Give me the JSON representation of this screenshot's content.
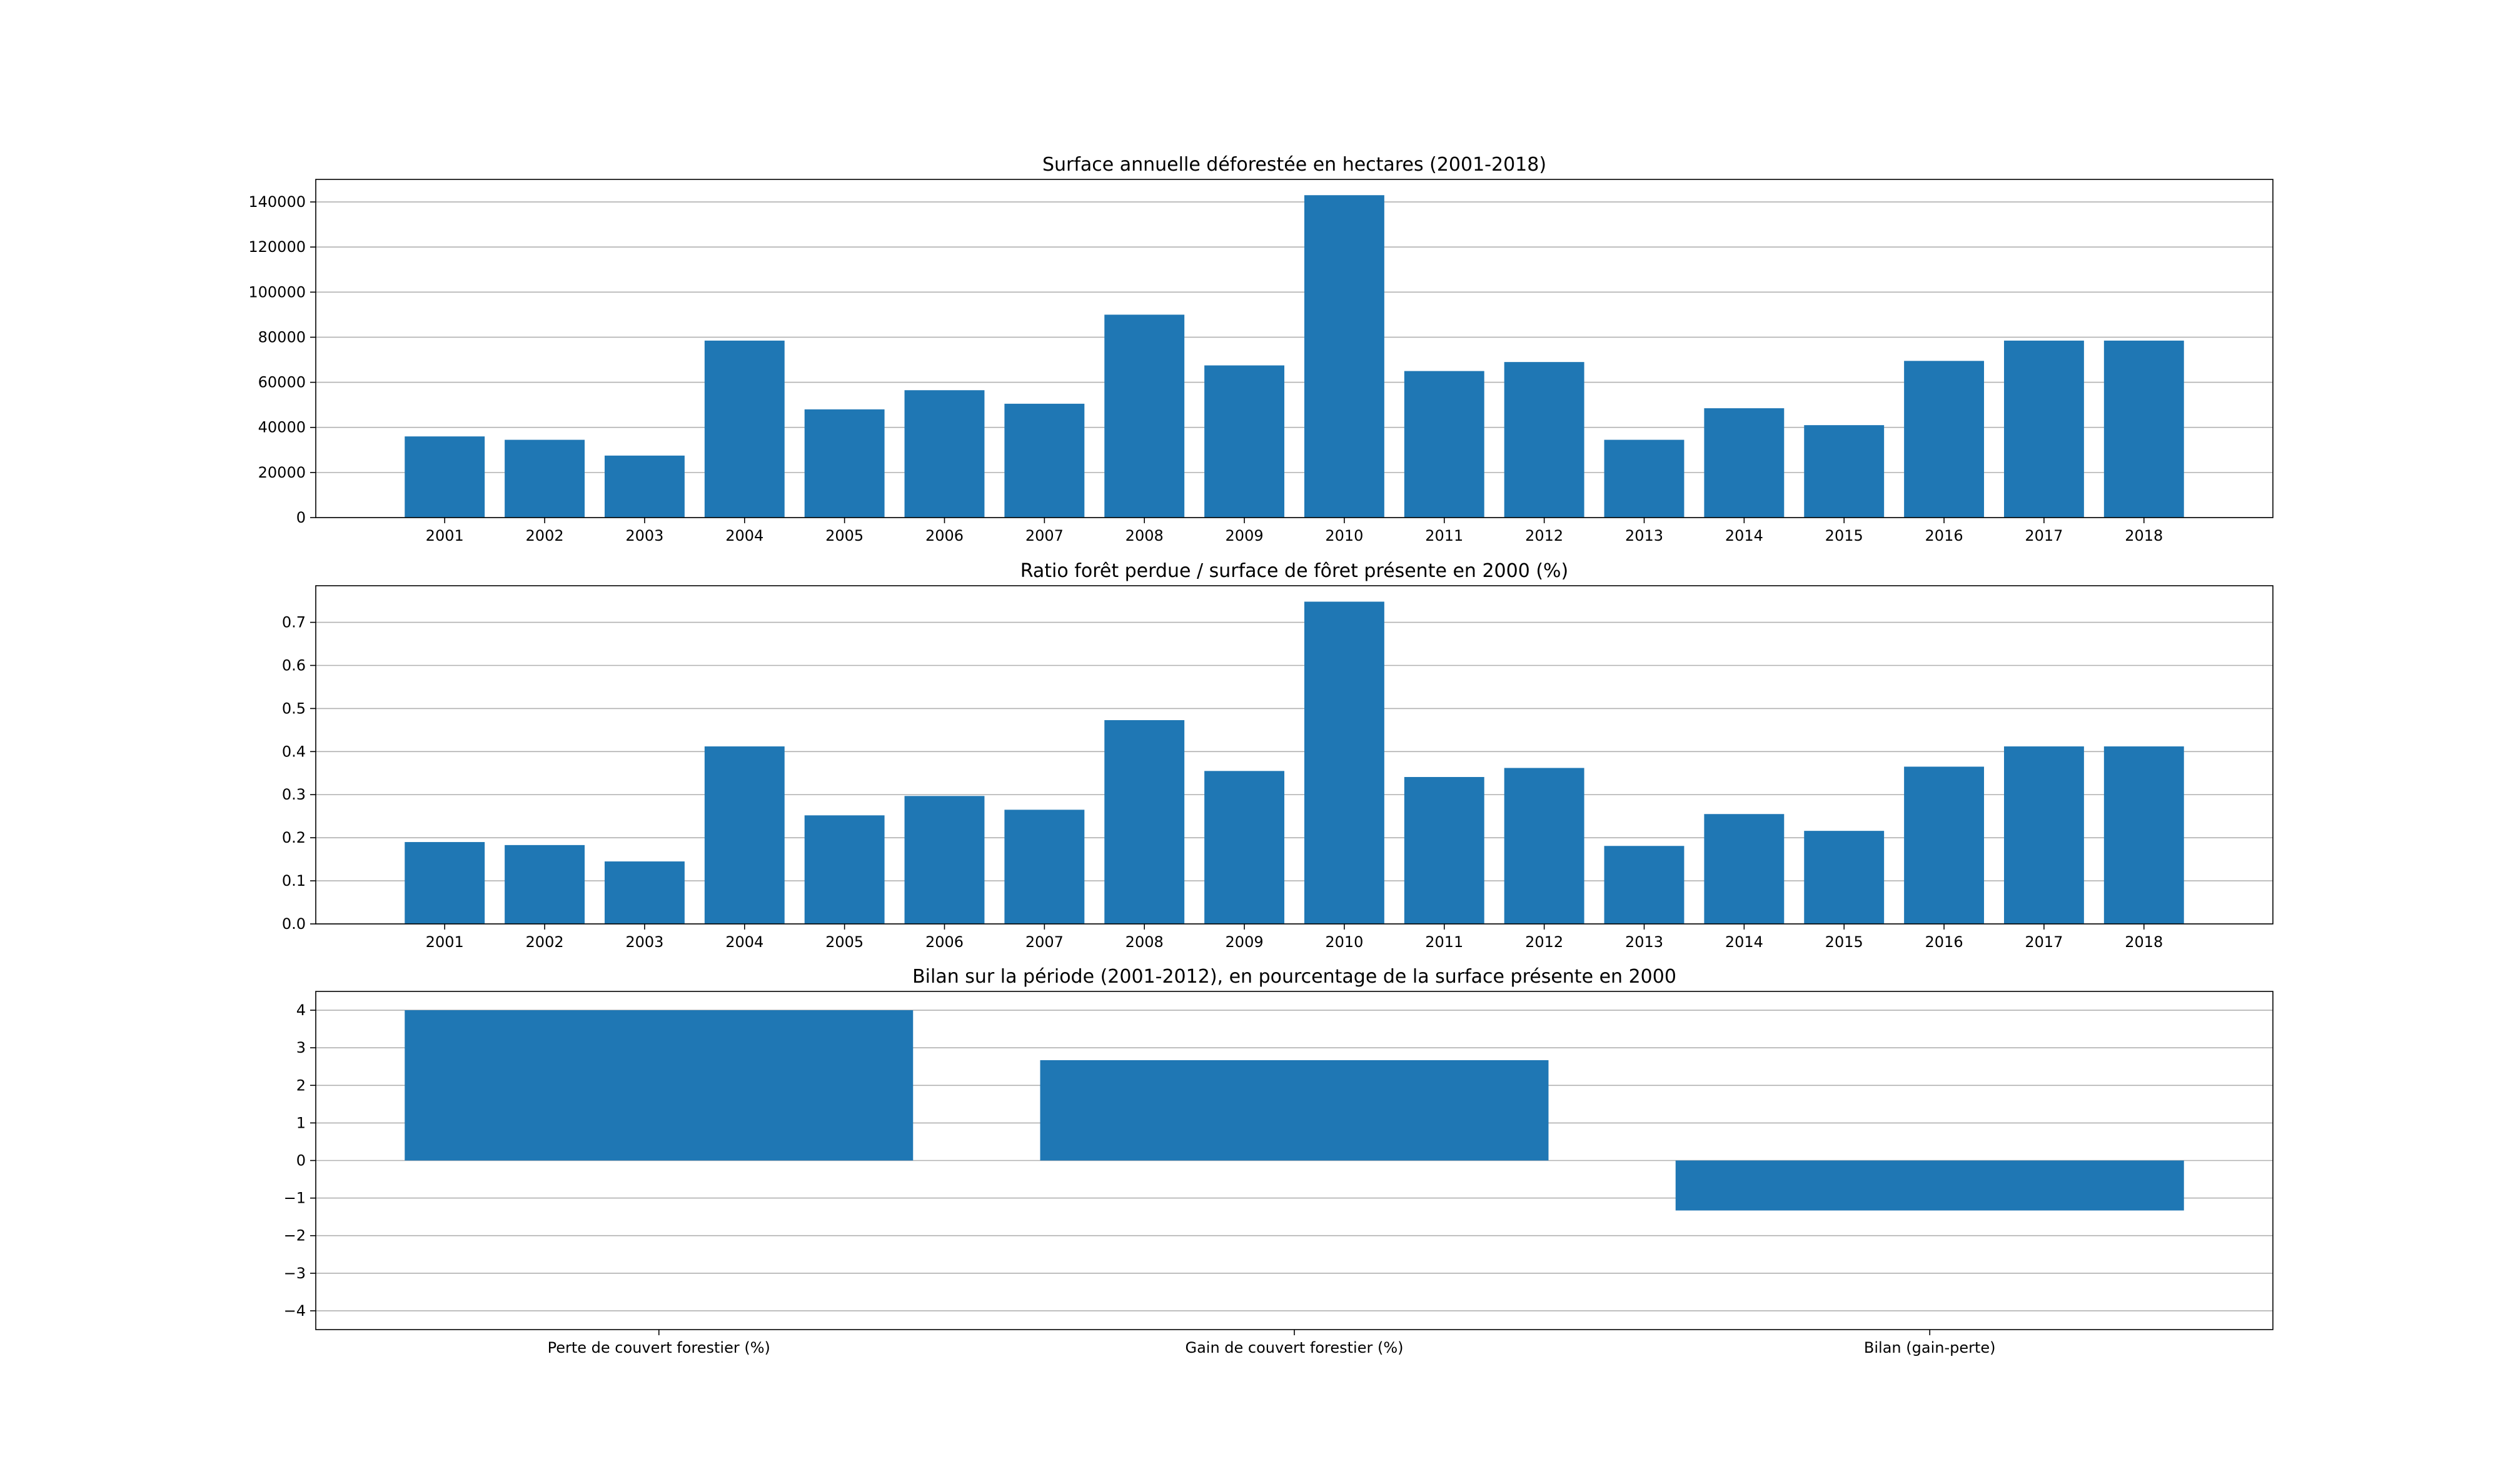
{
  "chart_data": [
    {
      "type": "bar",
      "title": "Surface annuelle déforestée en hectares (2001-2018)",
      "xlabel": "",
      "ylabel": "",
      "categories": [
        "2001",
        "2002",
        "2003",
        "2004",
        "2005",
        "2006",
        "2007",
        "2008",
        "2009",
        "2010",
        "2011",
        "2012",
        "2013",
        "2014",
        "2015",
        "2016",
        "2017",
        "2018"
      ],
      "values": [
        36000,
        34500,
        27500,
        78500,
        48000,
        56500,
        50500,
        90000,
        67500,
        143000,
        65000,
        69000,
        34500,
        48500,
        41000,
        69500,
        78500,
        78500
      ],
      "ylim": [
        0,
        150000
      ],
      "yticks": [
        0,
        20000,
        40000,
        60000,
        80000,
        100000,
        120000,
        140000
      ],
      "ytick_labels": [
        "0",
        "20000",
        "40000",
        "60000",
        "80000",
        "100000",
        "120000",
        "140000"
      ],
      "grid": "horizontal",
      "color": "#1f77b4"
    },
    {
      "type": "bar",
      "title": "Ratio forêt perdue / surface de fôret présente en 2000 (%)",
      "xlabel": "",
      "ylabel": "",
      "categories": [
        "2001",
        "2002",
        "2003",
        "2004",
        "2005",
        "2006",
        "2007",
        "2008",
        "2009",
        "2010",
        "2011",
        "2012",
        "2013",
        "2014",
        "2015",
        "2016",
        "2017",
        "2018"
      ],
      "values": [
        0.19,
        0.183,
        0.145,
        0.412,
        0.252,
        0.297,
        0.265,
        0.473,
        0.355,
        0.748,
        0.341,
        0.362,
        0.181,
        0.255,
        0.216,
        0.365,
        0.412,
        0.412
      ],
      "ylim": [
        0,
        0.785
      ],
      "yticks": [
        0.0,
        0.1,
        0.2,
        0.3,
        0.4,
        0.5,
        0.6,
        0.7
      ],
      "ytick_labels": [
        "0.0",
        "0.1",
        "0.2",
        "0.3",
        "0.4",
        "0.5",
        "0.6",
        "0.7"
      ],
      "grid": "horizontal",
      "color": "#1f77b4"
    },
    {
      "type": "bar",
      "title": "Bilan sur la période (2001-2012), en pourcentage de la surface présente en 2000",
      "xlabel": "",
      "ylabel": "",
      "categories": [
        "Perte de couvert forestier (%)",
        "Gain de couvert forestier (%)",
        "Bilan (gain-perte)"
      ],
      "values": [
        4.0,
        2.67,
        -1.33
      ],
      "ylim": [
        -4.5,
        4.5
      ],
      "yticks": [
        -4,
        -3,
        -2,
        -1,
        0,
        1,
        2,
        3,
        4
      ],
      "ytick_labels": [
        "−4",
        "−3",
        "−2",
        "−1",
        "0",
        "1",
        "2",
        "3",
        "4"
      ],
      "grid": "horizontal",
      "color": "#1f77b4"
    }
  ]
}
